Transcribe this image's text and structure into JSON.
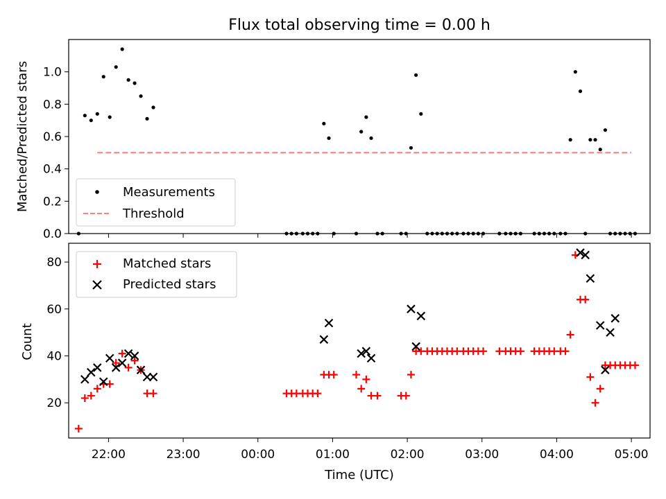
{
  "title": "Flux total observing time = 0.00 h",
  "colors": {
    "measurement": "#000000",
    "threshold": "#ff7f7f",
    "matched": "#ff0000",
    "predicted": "#000000"
  },
  "chart_data": [
    {
      "type": "scatter",
      "ylabel": "Matched/Predicted stars",
      "xlim": [
        "21:28",
        "05:15"
      ],
      "ylim": [
        0,
        1.2
      ],
      "yticks": [
        "0.0",
        "0.2",
        "0.4",
        "0.6",
        "0.8",
        "1.0"
      ],
      "grid": false,
      "legend_position": "lower left",
      "series": [
        {
          "name": "Measurements",
          "marker": "dot",
          "x": [
            "21:36",
            "21:41",
            "21:46",
            "21:51",
            "21:56",
            "22:01",
            "22:06",
            "22:11",
            "22:16",
            "22:21",
            "22:26",
            "22:31",
            "22:36",
            "00:23",
            "00:27",
            "00:31",
            "00:36",
            "00:40",
            "00:44",
            "00:48",
            "00:53",
            "00:57",
            "01:01",
            "01:19",
            "01:23",
            "01:27",
            "01:31",
            "01:36",
            "01:40",
            "01:55",
            "01:59",
            "02:03",
            "02:07",
            "02:11",
            "02:16",
            "02:20",
            "02:24",
            "02:28",
            "02:32",
            "02:36",
            "02:40",
            "02:45",
            "02:49",
            "02:53",
            "02:57",
            "03:01",
            "03:14",
            "03:19",
            "03:23",
            "03:27",
            "03:31",
            "03:42",
            "03:46",
            "03:50",
            "03:54",
            "03:58",
            "04:03",
            "04:07",
            "04:11",
            "04:15",
            "04:19",
            "04:23",
            "04:27",
            "04:31",
            "04:35",
            "04:39",
            "04:43",
            "04:47",
            "04:51",
            "04:55",
            "04:59",
            "05:03"
          ],
          "y": [
            0,
            0.73,
            0.7,
            0.74,
            0.97,
            0.72,
            1.03,
            1.14,
            0.95,
            0.93,
            0.85,
            0.71,
            0.78,
            0,
            0,
            0,
            0,
            0,
            0,
            0,
            0.68,
            0.59,
            0,
            0,
            0.63,
            0.72,
            0.59,
            0,
            0,
            0,
            0,
            0.53,
            0.98,
            0.74,
            0,
            0,
            0,
            0,
            0,
            0,
            0,
            0,
            0,
            0,
            0,
            0,
            0,
            0,
            0,
            0,
            0,
            0,
            0,
            0,
            0,
            0,
            0,
            0,
            0.58,
            1.0,
            0.88,
            0,
            0.58,
            0.58,
            0.52,
            0.64,
            0,
            0,
            0,
            0,
            0,
            0
          ]
        },
        {
          "name": "Threshold",
          "style": "dashed",
          "x": [
            "21:51",
            "05:00"
          ],
          "y": [
            0.5,
            0.5
          ]
        }
      ]
    },
    {
      "type": "scatter",
      "xlabel": "Time (UTC)",
      "ylabel": "Count",
      "xlim": [
        "21:28",
        "05:15"
      ],
      "ylim": [
        5,
        88
      ],
      "xticks": [
        "22:00",
        "23:00",
        "00:00",
        "01:00",
        "02:00",
        "03:00",
        "04:00",
        "05:00"
      ],
      "yticks": [
        "20",
        "40",
        "60",
        "80"
      ],
      "grid": false,
      "legend_position": "upper left",
      "series": [
        {
          "name": "Matched stars",
          "marker": "plus",
          "x": [
            "21:36",
            "21:41",
            "21:46",
            "21:51",
            "21:56",
            "22:01",
            "22:06",
            "22:11",
            "22:16",
            "22:21",
            "22:26",
            "22:31",
            "22:36",
            "00:23",
            "00:27",
            "00:31",
            "00:36",
            "00:40",
            "00:44",
            "00:48",
            "00:53",
            "00:57",
            "01:01",
            "01:19",
            "01:23",
            "01:27",
            "01:31",
            "01:36",
            "01:55",
            "01:59",
            "02:03",
            "02:07",
            "02:11",
            "02:16",
            "02:20",
            "02:24",
            "02:28",
            "02:32",
            "02:36",
            "02:40",
            "02:45",
            "02:49",
            "02:53",
            "02:57",
            "03:01",
            "03:14",
            "03:19",
            "03:23",
            "03:27",
            "03:31",
            "03:42",
            "03:46",
            "03:50",
            "03:54",
            "03:58",
            "04:03",
            "04:07",
            "04:11",
            "04:15",
            "04:19",
            "04:23",
            "04:27",
            "04:31",
            "04:35",
            "04:39",
            "04:43",
            "04:47",
            "04:51",
            "04:55",
            "04:59",
            "05:03"
          ],
          "y": [
            9,
            22,
            23,
            26,
            28,
            28,
            37,
            41,
            35,
            38,
            34,
            24,
            24,
            24,
            24,
            24,
            24,
            24,
            24,
            24,
            32,
            32,
            32,
            32,
            26,
            30,
            23,
            23,
            23,
            23,
            32,
            42,
            42,
            42,
            42,
            42,
            42,
            42,
            42,
            42,
            42,
            42,
            42,
            42,
            42,
            42,
            42,
            42,
            42,
            42,
            42,
            42,
            42,
            42,
            42,
            42,
            42,
            49,
            83,
            64,
            64,
            31,
            20,
            26,
            36,
            36,
            36,
            36,
            36,
            36,
            36
          ]
        },
        {
          "name": "Predicted stars",
          "marker": "x",
          "x": [
            "21:41",
            "21:46",
            "21:51",
            "21:56",
            "22:01",
            "22:06",
            "22:11",
            "22:16",
            "22:21",
            "22:26",
            "22:31",
            "22:36",
            "00:53",
            "00:57",
            "01:23",
            "01:27",
            "01:31",
            "02:03",
            "02:07",
            "02:11",
            "04:19",
            "04:23",
            "04:27",
            "04:35",
            "04:39",
            "04:43",
            "04:47"
          ],
          "y": [
            30,
            33,
            35,
            29,
            39,
            35,
            37,
            41,
            40,
            34,
            31,
            31,
            47,
            54,
            41,
            42,
            39,
            60,
            44,
            57,
            84,
            83,
            73,
            53,
            34,
            50,
            56
          ]
        }
      ]
    }
  ]
}
